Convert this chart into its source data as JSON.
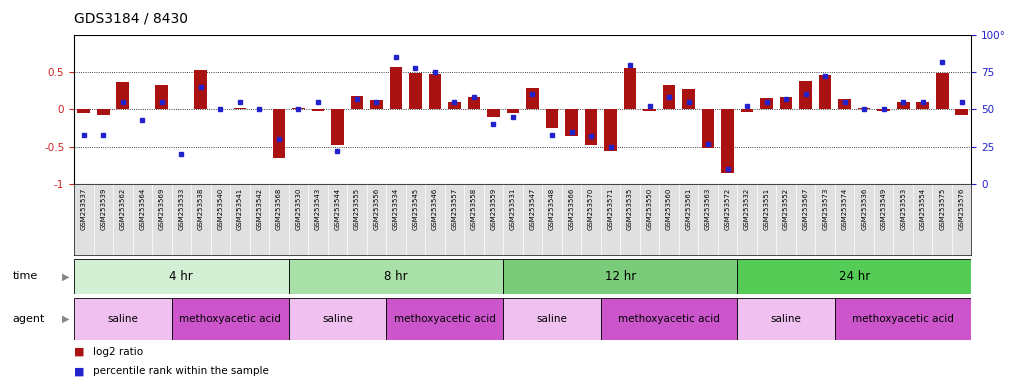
{
  "title": "GDS3184 / 8430",
  "samples": [
    "GSM253537",
    "GSM253539",
    "GSM253562",
    "GSM253564",
    "GSM253569",
    "GSM253533",
    "GSM253538",
    "GSM253540",
    "GSM253541",
    "GSM253542",
    "GSM253568",
    "GSM253530",
    "GSM253543",
    "GSM253544",
    "GSM253555",
    "GSM253556",
    "GSM253534",
    "GSM253545",
    "GSM253546",
    "GSM253557",
    "GSM253558",
    "GSM253559",
    "GSM253531",
    "GSM253547",
    "GSM253548",
    "GSM253566",
    "GSM253570",
    "GSM253571",
    "GSM253535",
    "GSM253550",
    "GSM253560",
    "GSM253561",
    "GSM253563",
    "GSM253572",
    "GSM253532",
    "GSM253551",
    "GSM253552",
    "GSM253567",
    "GSM253573",
    "GSM253574",
    "GSM253536",
    "GSM253549",
    "GSM253553",
    "GSM253554",
    "GSM253575",
    "GSM253576"
  ],
  "log2_ratio": [
    -0.05,
    -0.08,
    0.37,
    0.0,
    0.33,
    0.0,
    0.53,
    0.0,
    0.02,
    0.0,
    -0.65,
    0.02,
    -0.02,
    -0.48,
    0.18,
    0.13,
    0.57,
    0.48,
    0.47,
    0.1,
    0.16,
    -0.1,
    -0.05,
    0.29,
    -0.25,
    -0.35,
    -0.48,
    -0.55,
    0.55,
    -0.02,
    0.32,
    0.27,
    -0.52,
    -0.85,
    -0.03,
    0.15,
    0.16,
    0.38,
    0.46,
    0.14,
    0.02,
    -0.02,
    0.1,
    0.1,
    0.48,
    -0.07
  ],
  "percentile": [
    33,
    33,
    55,
    43,
    55,
    20,
    65,
    50,
    55,
    50,
    30,
    50,
    55,
    22,
    57,
    55,
    85,
    78,
    75,
    55,
    58,
    40,
    45,
    60,
    33,
    35,
    32,
    25,
    80,
    52,
    58,
    55,
    27,
    10,
    52,
    55,
    57,
    60,
    72,
    55,
    50,
    50,
    55,
    55,
    82,
    55
  ],
  "time_groups": [
    {
      "label": "4 hr",
      "start": 0,
      "end": 11,
      "color": "#d4f0d4"
    },
    {
      "label": "8 hr",
      "start": 11,
      "end": 22,
      "color": "#a8e0a8"
    },
    {
      "label": "12 hr",
      "start": 22,
      "end": 34,
      "color": "#7acc7a"
    },
    {
      "label": "24 hr",
      "start": 34,
      "end": 46,
      "color": "#55cc55"
    }
  ],
  "agent_groups": [
    {
      "label": "saline",
      "start": 0,
      "end": 5,
      "color": "#f0c0f0"
    },
    {
      "label": "methoxyacetic acid",
      "start": 5,
      "end": 11,
      "color": "#cc55cc"
    },
    {
      "label": "saline",
      "start": 11,
      "end": 16,
      "color": "#f0c0f0"
    },
    {
      "label": "methoxyacetic acid",
      "start": 16,
      "end": 22,
      "color": "#cc55cc"
    },
    {
      "label": "saline",
      "start": 22,
      "end": 27,
      "color": "#f0c0f0"
    },
    {
      "label": "methoxyacetic acid",
      "start": 27,
      "end": 34,
      "color": "#cc55cc"
    },
    {
      "label": "saline",
      "start": 34,
      "end": 39,
      "color": "#f0c0f0"
    },
    {
      "label": "methoxyacetic acid",
      "start": 39,
      "end": 46,
      "color": "#cc55cc"
    }
  ],
  "bar_color": "#aa1111",
  "dot_color": "#2222cc",
  "ylim": [
    -1,
    1
  ],
  "yticks": [
    -1,
    -0.5,
    0,
    0.5
  ],
  "ytick_labels": [
    "-1",
    "-0.5",
    "0",
    "0.5"
  ],
  "right_yticks": [
    0,
    25,
    50,
    75,
    100
  ],
  "hlines": [
    -0.5,
    0,
    0.5
  ],
  "background_color": "#ffffff",
  "plot_bg_color": "#ffffff",
  "xtick_bg": "#e0e0e0"
}
